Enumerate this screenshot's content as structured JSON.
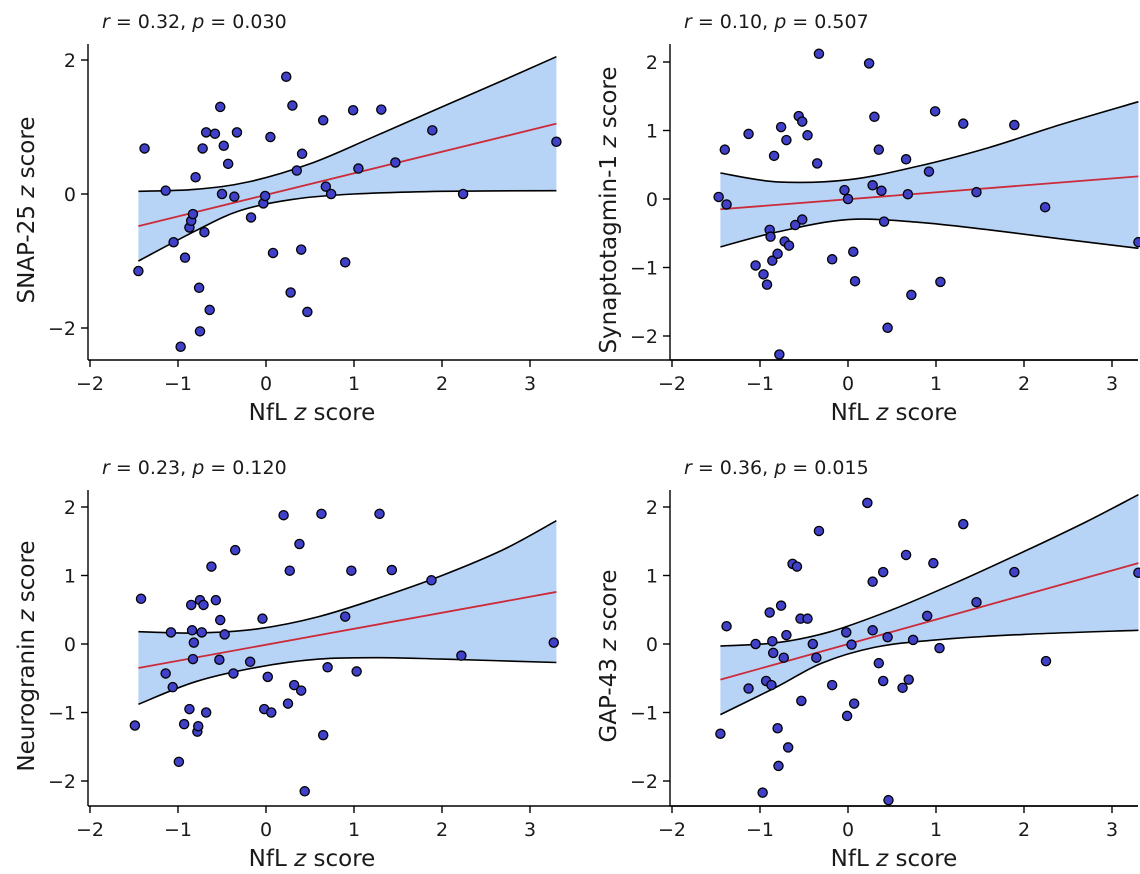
{
  "chart_data": [
    {
      "type": "scatter",
      "stat": {
        "r_symbol": "r",
        "r_value": " = 0.32, ",
        "p_symbol": "p",
        "p_value": " = 0.030"
      },
      "xlabel": {
        "text": "NfL ",
        "italic": "z",
        "rest": " score"
      },
      "ylabel": {
        "text": "SNAP-25 ",
        "italic": "z",
        "rest": " score"
      },
      "xlim": [
        -2,
        3.3
      ],
      "ylim": [
        -2.5,
        2.2
      ],
      "xticks": [
        -2,
        -1,
        0,
        1,
        2,
        3
      ],
      "xtick_labels": [
        "−2",
        "−1",
        "0",
        "1",
        "2",
        "3"
      ],
      "yticks": [
        -2,
        0,
        2
      ],
      "ytick_labels": [
        "−2",
        "0",
        "2"
      ],
      "fit": {
        "x0": -1.45,
        "y0": -0.48,
        "x1": 3.3,
        "y1": 1.05
      },
      "ci_upper": [
        [
          -1.45,
          0.04
        ],
        [
          -0.8,
          0.07
        ],
        [
          -0.2,
          0.18
        ],
        [
          0.5,
          0.45
        ],
        [
          1.2,
          0.84
        ],
        [
          2.0,
          1.3
        ],
        [
          2.7,
          1.7
        ],
        [
          3.3,
          2.05
        ]
      ],
      "ci_lower": [
        [
          -1.45,
          -1.0
        ],
        [
          -0.8,
          -0.55
        ],
        [
          -0.3,
          -0.25
        ],
        [
          0.3,
          -0.08
        ],
        [
          1.0,
          0.0
        ],
        [
          2.0,
          0.04
        ],
        [
          3.3,
          0.05
        ]
      ],
      "points": [
        [
          -1.45,
          -1.15
        ],
        [
          -1.38,
          0.68
        ],
        [
          -1.14,
          0.05
        ],
        [
          -1.05,
          -0.72
        ],
        [
          -0.97,
          -2.28
        ],
        [
          -0.92,
          -0.95
        ],
        [
          -0.87,
          -0.5
        ],
        [
          -0.85,
          -0.4
        ],
        [
          -0.83,
          -0.3
        ],
        [
          -0.8,
          0.25
        ],
        [
          -0.76,
          -1.4
        ],
        [
          -0.75,
          -2.05
        ],
        [
          -0.72,
          0.68
        ],
        [
          -0.7,
          -0.57
        ],
        [
          -0.68,
          0.92
        ],
        [
          -0.64,
          -1.73
        ],
        [
          -0.58,
          0.9
        ],
        [
          -0.52,
          1.3
        ],
        [
          -0.5,
          0.0
        ],
        [
          -0.48,
          0.72
        ],
        [
          -0.43,
          0.45
        ],
        [
          -0.36,
          -0.04
        ],
        [
          -0.33,
          0.92
        ],
        [
          -0.17,
          -0.35
        ],
        [
          -0.03,
          -0.14
        ],
        [
          -0.01,
          -0.03
        ],
        [
          0.05,
          0.85
        ],
        [
          0.08,
          -0.88
        ],
        [
          0.23,
          1.75
        ],
        [
          0.28,
          -1.47
        ],
        [
          0.3,
          1.32
        ],
        [
          0.35,
          0.35
        ],
        [
          0.4,
          -0.83
        ],
        [
          0.41,
          0.6
        ],
        [
          0.47,
          -1.76
        ],
        [
          0.65,
          1.1
        ],
        [
          0.68,
          0.11
        ],
        [
          0.74,
          0.0
        ],
        [
          0.9,
          -1.02
        ],
        [
          0.99,
          1.25
        ],
        [
          1.05,
          0.38
        ],
        [
          1.31,
          1.26
        ],
        [
          1.47,
          0.47
        ],
        [
          1.89,
          0.95
        ],
        [
          2.24,
          0.0
        ],
        [
          3.3,
          0.78
        ]
      ]
    },
    {
      "type": "scatter",
      "stat": {
        "r_symbol": "r",
        "r_value": " = 0.10, ",
        "p_symbol": "p",
        "p_value": " = 0.507"
      },
      "xlabel": {
        "text": "NfL ",
        "italic": "z",
        "rest": " score"
      },
      "ylabel": {
        "text": "Synaptotagmin-1 ",
        "italic": "z",
        "rest": " score"
      },
      "xlim": [
        -2,
        3.3
      ],
      "ylim": [
        -2.3,
        2.2
      ],
      "xticks": [
        -2,
        -1,
        0,
        1,
        2,
        3
      ],
      "xtick_labels": [
        "−2",
        "−1",
        "0",
        "1",
        "2",
        "3"
      ],
      "yticks": [
        -2,
        -1,
        0,
        1,
        2
      ],
      "ytick_labels": [
        "−2",
        "−1",
        "0",
        "1",
        "2"
      ],
      "fit": {
        "x0": -1.45,
        "y0": -0.15,
        "x1": 3.3,
        "y1": 0.33
      },
      "ci_upper": [
        [
          -1.45,
          0.38
        ],
        [
          -0.8,
          0.25
        ],
        [
          0.0,
          0.28
        ],
        [
          0.8,
          0.48
        ],
        [
          1.6,
          0.75
        ],
        [
          2.4,
          1.08
        ],
        [
          3.3,
          1.42
        ]
      ],
      "ci_lower": [
        [
          -1.45,
          -0.7
        ],
        [
          -0.8,
          -0.48
        ],
        [
          0.0,
          -0.3
        ],
        [
          0.8,
          -0.34
        ],
        [
          1.6,
          -0.45
        ],
        [
          2.4,
          -0.58
        ],
        [
          3.3,
          -0.72
        ]
      ],
      "points": [
        [
          -1.47,
          0.03
        ],
        [
          -1.4,
          0.72
        ],
        [
          -1.38,
          -0.08
        ],
        [
          -1.13,
          0.95
        ],
        [
          -1.05,
          -0.97
        ],
        [
          -0.96,
          -1.1
        ],
        [
          -0.92,
          -1.25
        ],
        [
          -0.89,
          -0.45
        ],
        [
          -0.88,
          -0.55
        ],
        [
          -0.86,
          -0.9
        ],
        [
          -0.84,
          0.63
        ],
        [
          -0.8,
          -0.8
        ],
        [
          -0.78,
          -2.27
        ],
        [
          -0.76,
          1.05
        ],
        [
          -0.72,
          -0.62
        ],
        [
          -0.7,
          0.86
        ],
        [
          -0.67,
          -0.68
        ],
        [
          -0.6,
          -0.38
        ],
        [
          -0.56,
          1.21
        ],
        [
          -0.52,
          -0.3
        ],
        [
          -0.52,
          1.13
        ],
        [
          -0.46,
          0.93
        ],
        [
          -0.35,
          0.52
        ],
        [
          -0.33,
          2.12
        ],
        [
          -0.18,
          -0.88
        ],
        [
          -0.04,
          0.13
        ],
        [
          0.0,
          0.0
        ],
        [
          0.06,
          -0.77
        ],
        [
          0.08,
          -1.2
        ],
        [
          0.24,
          1.98
        ],
        [
          0.28,
          0.2
        ],
        [
          0.3,
          1.2
        ],
        [
          0.35,
          0.72
        ],
        [
          0.38,
          0.12
        ],
        [
          0.41,
          -0.33
        ],
        [
          0.45,
          -1.88
        ],
        [
          0.66,
          0.58
        ],
        [
          0.68,
          0.07
        ],
        [
          0.72,
          -1.4
        ],
        [
          0.92,
          0.4
        ],
        [
          0.99,
          1.28
        ],
        [
          1.05,
          -1.21
        ],
        [
          1.31,
          1.1
        ],
        [
          1.46,
          0.1
        ],
        [
          1.89,
          1.08
        ],
        [
          2.24,
          -0.12
        ],
        [
          3.3,
          -0.63
        ]
      ]
    },
    {
      "type": "scatter",
      "stat": {
        "r_symbol": "r",
        "r_value": " = 0.23, ",
        "p_symbol": "p",
        "p_value": " = 0.120"
      },
      "xlabel": {
        "text": "NfL ",
        "italic": "z",
        "rest": " score"
      },
      "ylabel": {
        "text": "Neurogranin ",
        "italic": "z",
        "rest": " score"
      },
      "xlim": [
        -2,
        3.3
      ],
      "ylim": [
        -2.4,
        2.2
      ],
      "xticks": [
        -2,
        -1,
        0,
        1,
        2,
        3
      ],
      "xtick_labels": [
        "−2",
        "−1",
        "0",
        "1",
        "2",
        "3"
      ],
      "yticks": [
        -2,
        -1,
        0,
        1,
        2
      ],
      "ytick_labels": [
        "−2",
        "−1",
        "0",
        "1",
        "2"
      ],
      "fit": {
        "x0": -1.45,
        "y0": -0.35,
        "x1": 3.3,
        "y1": 0.76
      },
      "ci_upper": [
        [
          -1.45,
          0.18
        ],
        [
          -0.8,
          0.16
        ],
        [
          -0.1,
          0.22
        ],
        [
          0.6,
          0.4
        ],
        [
          1.3,
          0.68
        ],
        [
          2.0,
          1.0
        ],
        [
          2.7,
          1.38
        ],
        [
          3.3,
          1.8
        ]
      ],
      "ci_lower": [
        [
          -1.45,
          -0.88
        ],
        [
          -0.8,
          -0.55
        ],
        [
          -0.1,
          -0.34
        ],
        [
          0.6,
          -0.22
        ],
        [
          1.3,
          -0.2
        ],
        [
          2.0,
          -0.22
        ],
        [
          3.3,
          -0.27
        ]
      ],
      "points": [
        [
          -1.49,
          -1.19
        ],
        [
          -1.42,
          0.66
        ],
        [
          -1.14,
          -0.43
        ],
        [
          -1.08,
          0.17
        ],
        [
          -1.06,
          -0.63
        ],
        [
          -0.99,
          -1.72
        ],
        [
          -0.93,
          -1.17
        ],
        [
          -0.87,
          -0.95
        ],
        [
          -0.85,
          0.57
        ],
        [
          -0.84,
          0.2
        ],
        [
          -0.83,
          -0.22
        ],
        [
          -0.82,
          0.02
        ],
        [
          -0.78,
          -1.28
        ],
        [
          -0.77,
          -1.2
        ],
        [
          -0.75,
          0.64
        ],
        [
          -0.73,
          0.17
        ],
        [
          -0.71,
          0.57
        ],
        [
          -0.68,
          -1.0
        ],
        [
          -0.62,
          1.13
        ],
        [
          -0.57,
          0.64
        ],
        [
          -0.53,
          -0.23
        ],
        [
          -0.52,
          0.35
        ],
        [
          -0.47,
          0.14
        ],
        [
          -0.37,
          -0.43
        ],
        [
          -0.35,
          1.37
        ],
        [
          -0.18,
          -0.26
        ],
        [
          -0.04,
          0.37
        ],
        [
          -0.02,
          -0.95
        ],
        [
          0.02,
          -0.48
        ],
        [
          0.06,
          -1.0
        ],
        [
          0.2,
          1.88
        ],
        [
          0.25,
          -0.87
        ],
        [
          0.27,
          1.07
        ],
        [
          0.32,
          -0.6
        ],
        [
          0.38,
          1.46
        ],
        [
          0.4,
          -0.68
        ],
        [
          0.44,
          -2.15
        ],
        [
          0.63,
          1.9
        ],
        [
          0.65,
          -1.33
        ],
        [
          0.7,
          -0.34
        ],
        [
          0.9,
          0.4
        ],
        [
          0.97,
          1.07
        ],
        [
          1.03,
          -0.4
        ],
        [
          1.29,
          1.9
        ],
        [
          1.43,
          1.08
        ],
        [
          1.88,
          0.93
        ],
        [
          2.22,
          -0.17
        ],
        [
          3.27,
          0.02
        ]
      ]
    },
    {
      "type": "scatter",
      "stat": {
        "r_symbol": "r",
        "r_value": " = 0.36, ",
        "p_symbol": "p",
        "p_value": " = 0.015"
      },
      "xlabel": {
        "text": "NfL ",
        "italic": "z",
        "rest": " score"
      },
      "ylabel": {
        "text": "GAP-43 ",
        "italic": "z",
        "rest": " score"
      },
      "xlim": [
        -2,
        3.3
      ],
      "ylim": [
        -2.4,
        2.2
      ],
      "xticks": [
        -2,
        -1,
        0,
        1,
        2,
        3
      ],
      "xtick_labels": [
        "−2",
        "−1",
        "0",
        "1",
        "2",
        "3"
      ],
      "yticks": [
        -2,
        -1,
        0,
        1,
        2
      ],
      "ytick_labels": [
        "−2",
        "−1",
        "0",
        "1",
        "2"
      ],
      "fit": {
        "x0": -1.45,
        "y0": -0.52,
        "x1": 3.3,
        "y1": 1.18
      },
      "ci_upper": [
        [
          -1.45,
          -0.03
        ],
        [
          -0.8,
          0.02
        ],
        [
          -0.2,
          0.18
        ],
        [
          0.5,
          0.5
        ],
        [
          1.2,
          0.88
        ],
        [
          2.0,
          1.35
        ],
        [
          2.7,
          1.78
        ],
        [
          3.3,
          2.18
        ]
      ],
      "ci_lower": [
        [
          -1.45,
          -1.03
        ],
        [
          -0.8,
          -0.62
        ],
        [
          -0.3,
          -0.28
        ],
        [
          0.3,
          -0.05
        ],
        [
          1.0,
          0.06
        ],
        [
          2.0,
          0.14
        ],
        [
          3.3,
          0.2
        ]
      ],
      "points": [
        [
          -1.45,
          -1.31
        ],
        [
          -1.38,
          0.26
        ],
        [
          -1.13,
          -0.65
        ],
        [
          -1.05,
          0.0
        ],
        [
          -0.97,
          -2.17
        ],
        [
          -0.93,
          -0.54
        ],
        [
          -0.89,
          0.46
        ],
        [
          -0.87,
          -0.6
        ],
        [
          -0.86,
          0.04
        ],
        [
          -0.85,
          -0.13
        ],
        [
          -0.8,
          -1.23
        ],
        [
          -0.79,
          -1.78
        ],
        [
          -0.76,
          0.56
        ],
        [
          -0.73,
          -0.2
        ],
        [
          -0.7,
          0.13
        ],
        [
          -0.68,
          -1.51
        ],
        [
          -0.63,
          1.17
        ],
        [
          -0.58,
          1.13
        ],
        [
          -0.54,
          0.37
        ],
        [
          -0.53,
          -0.83
        ],
        [
          -0.46,
          0.37
        ],
        [
          -0.4,
          0.0
        ],
        [
          -0.36,
          -0.2
        ],
        [
          -0.33,
          1.65
        ],
        [
          -0.18,
          -0.6
        ],
        [
          -0.02,
          0.17
        ],
        [
          -0.01,
          -1.05
        ],
        [
          0.04,
          -0.01
        ],
        [
          0.07,
          -0.87
        ],
        [
          0.22,
          2.06
        ],
        [
          0.28,
          0.2
        ],
        [
          0.28,
          0.91
        ],
        [
          0.35,
          -0.28
        ],
        [
          0.4,
          -0.54
        ],
        [
          0.4,
          1.05
        ],
        [
          0.45,
          0.1
        ],
        [
          0.46,
          -2.28
        ],
        [
          0.62,
          -0.64
        ],
        [
          0.66,
          1.3
        ],
        [
          0.69,
          -0.52
        ],
        [
          0.74,
          0.06
        ],
        [
          0.9,
          0.41
        ],
        [
          0.97,
          1.18
        ],
        [
          1.04,
          -0.06
        ],
        [
          1.31,
          1.75
        ],
        [
          1.46,
          0.61
        ],
        [
          1.89,
          1.05
        ],
        [
          2.25,
          -0.25
        ],
        [
          3.3,
          1.04
        ]
      ]
    }
  ]
}
